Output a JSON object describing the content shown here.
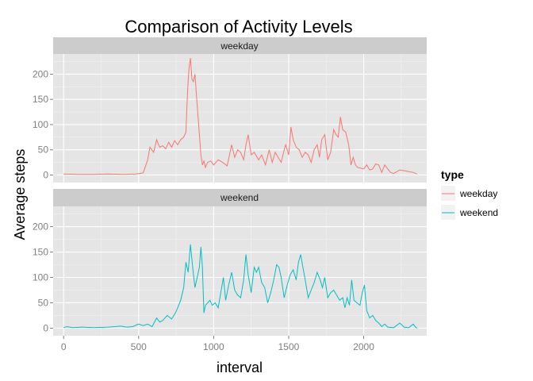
{
  "chart_data": {
    "type": "line",
    "title": "Comparison of Activity Levels",
    "xlabel": "interval",
    "ylabel": "Average steps",
    "xlim": [
      -70,
      2420
    ],
    "ylim": [
      -15,
      240
    ],
    "x_ticks": [
      0,
      500,
      1000,
      1500,
      2000
    ],
    "y_ticks": [
      0,
      50,
      100,
      150,
      200
    ],
    "grid": true,
    "legend": {
      "title": "type",
      "placement": "right"
    },
    "facets": [
      "weekday",
      "weekend"
    ],
    "series": [
      {
        "name": "weekday",
        "color": "#F8766D",
        "facet": "weekday",
        "points": [
          [
            0,
            2
          ],
          [
            100,
            1
          ],
          [
            200,
            1
          ],
          [
            300,
            2
          ],
          [
            400,
            1
          ],
          [
            480,
            2
          ],
          [
            530,
            4
          ],
          [
            560,
            30
          ],
          [
            575,
            55
          ],
          [
            600,
            45
          ],
          [
            620,
            70
          ],
          [
            640,
            55
          ],
          [
            660,
            58
          ],
          [
            680,
            52
          ],
          [
            700,
            65
          ],
          [
            720,
            55
          ],
          [
            740,
            68
          ],
          [
            760,
            60
          ],
          [
            780,
            70
          ],
          [
            800,
            75
          ],
          [
            815,
            85
          ],
          [
            825,
            160
          ],
          [
            835,
            210
          ],
          [
            845,
            232
          ],
          [
            855,
            190
          ],
          [
            865,
            185
          ],
          [
            875,
            200
          ],
          [
            885,
            160
          ],
          [
            895,
            120
          ],
          [
            905,
            80
          ],
          [
            915,
            40
          ],
          [
            925,
            20
          ],
          [
            935,
            28
          ],
          [
            945,
            15
          ],
          [
            960,
            25
          ],
          [
            980,
            28
          ],
          [
            1000,
            20
          ],
          [
            1030,
            30
          ],
          [
            1060,
            25
          ],
          [
            1090,
            18
          ],
          [
            1120,
            60
          ],
          [
            1140,
            35
          ],
          [
            1160,
            50
          ],
          [
            1180,
            45
          ],
          [
            1200,
            30
          ],
          [
            1215,
            60
          ],
          [
            1230,
            80
          ],
          [
            1250,
            40
          ],
          [
            1270,
            45
          ],
          [
            1300,
            30
          ],
          [
            1320,
            40
          ],
          [
            1345,
            20
          ],
          [
            1370,
            50
          ],
          [
            1390,
            25
          ],
          [
            1410,
            45
          ],
          [
            1430,
            35
          ],
          [
            1450,
            25
          ],
          [
            1470,
            50
          ],
          [
            1480,
            60
          ],
          [
            1500,
            40
          ],
          [
            1515,
            95
          ],
          [
            1530,
            70
          ],
          [
            1550,
            55
          ],
          [
            1570,
            50
          ],
          [
            1590,
            35
          ],
          [
            1610,
            45
          ],
          [
            1630,
            40
          ],
          [
            1650,
            25
          ],
          [
            1670,
            50
          ],
          [
            1690,
            60
          ],
          [
            1705,
            35
          ],
          [
            1720,
            70
          ],
          [
            1740,
            80
          ],
          [
            1760,
            30
          ],
          [
            1780,
            45
          ],
          [
            1800,
            90
          ],
          [
            1815,
            80
          ],
          [
            1830,
            75
          ],
          [
            1845,
            115
          ],
          [
            1860,
            90
          ],
          [
            1880,
            85
          ],
          [
            1900,
            60
          ],
          [
            1915,
            20
          ],
          [
            1930,
            35
          ],
          [
            1945,
            20
          ],
          [
            1960,
            15
          ],
          [
            2000,
            12
          ],
          [
            2020,
            20
          ],
          [
            2040,
            10
          ],
          [
            2060,
            12
          ],
          [
            2080,
            22
          ],
          [
            2100,
            20
          ],
          [
            2120,
            5
          ],
          [
            2140,
            20
          ],
          [
            2160,
            12
          ],
          [
            2180,
            5
          ],
          [
            2200,
            3
          ],
          [
            2240,
            10
          ],
          [
            2280,
            8
          ],
          [
            2330,
            5
          ],
          [
            2355,
            2
          ]
        ]
      },
      {
        "name": "weekend",
        "color": "#00BFC4",
        "facet": "weekend",
        "points": [
          [
            0,
            1
          ],
          [
            20,
            3
          ],
          [
            60,
            1
          ],
          [
            120,
            2
          ],
          [
            200,
            1
          ],
          [
            300,
            2
          ],
          [
            380,
            4
          ],
          [
            420,
            2
          ],
          [
            460,
            3
          ],
          [
            500,
            8
          ],
          [
            530,
            5
          ],
          [
            560,
            8
          ],
          [
            590,
            3
          ],
          [
            620,
            20
          ],
          [
            640,
            12
          ],
          [
            660,
            15
          ],
          [
            690,
            25
          ],
          [
            720,
            18
          ],
          [
            745,
            30
          ],
          [
            760,
            40
          ],
          [
            780,
            55
          ],
          [
            800,
            80
          ],
          [
            815,
            130
          ],
          [
            830,
            110
          ],
          [
            845,
            165
          ],
          [
            860,
            120
          ],
          [
            875,
            80
          ],
          [
            890,
            100
          ],
          [
            905,
            120
          ],
          [
            915,
            160
          ],
          [
            925,
            120
          ],
          [
            935,
            30
          ],
          [
            945,
            45
          ],
          [
            960,
            50
          ],
          [
            975,
            55
          ],
          [
            990,
            45
          ],
          [
            1010,
            50
          ],
          [
            1030,
            40
          ],
          [
            1050,
            75
          ],
          [
            1065,
            100
          ],
          [
            1080,
            55
          ],
          [
            1100,
            85
          ],
          [
            1120,
            110
          ],
          [
            1140,
            75
          ],
          [
            1160,
            65
          ],
          [
            1180,
            60
          ],
          [
            1200,
            95
          ],
          [
            1215,
            145
          ],
          [
            1230,
            105
          ],
          [
            1250,
            70
          ],
          [
            1270,
            120
          ],
          [
            1285,
            110
          ],
          [
            1300,
            120
          ],
          [
            1320,
            90
          ],
          [
            1340,
            80
          ],
          [
            1360,
            50
          ],
          [
            1380,
            70
          ],
          [
            1400,
            95
          ],
          [
            1420,
            125
          ],
          [
            1435,
            120
          ],
          [
            1450,
            100
          ],
          [
            1470,
            60
          ],
          [
            1490,
            85
          ],
          [
            1510,
            105
          ],
          [
            1530,
            115
          ],
          [
            1550,
            95
          ],
          [
            1565,
            130
          ],
          [
            1580,
            145
          ],
          [
            1595,
            120
          ],
          [
            1610,
            95
          ],
          [
            1630,
            60
          ],
          [
            1650,
            75
          ],
          [
            1670,
            90
          ],
          [
            1690,
            110
          ],
          [
            1710,
            95
          ],
          [
            1725,
            80
          ],
          [
            1740,
            100
          ],
          [
            1760,
            60
          ],
          [
            1780,
            70
          ],
          [
            1800,
            75
          ],
          [
            1820,
            65
          ],
          [
            1840,
            55
          ],
          [
            1860,
            60
          ],
          [
            1875,
            40
          ],
          [
            1890,
            60
          ],
          [
            1905,
            45
          ],
          [
            1920,
            95
          ],
          [
            1935,
            55
          ],
          [
            1955,
            50
          ],
          [
            1975,
            45
          ],
          [
            1990,
            70
          ],
          [
            2005,
            85
          ],
          [
            2020,
            35
          ],
          [
            2040,
            20
          ],
          [
            2060,
            25
          ],
          [
            2080,
            15
          ],
          [
            2100,
            10
          ],
          [
            2120,
            3
          ],
          [
            2140,
            8
          ],
          [
            2160,
            2
          ],
          [
            2200,
            1
          ],
          [
            2240,
            10
          ],
          [
            2270,
            2
          ],
          [
            2300,
            1
          ],
          [
            2330,
            8
          ],
          [
            2345,
            2
          ],
          [
            2355,
            0
          ]
        ]
      }
    ]
  }
}
